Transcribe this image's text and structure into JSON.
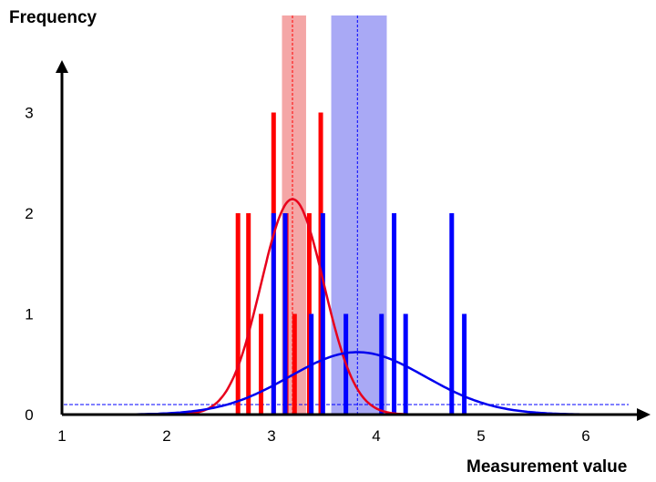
{
  "chart_data": {
    "type": "bar",
    "title": "",
    "xlabel": "Measurement value",
    "ylabel": "Frequency",
    "xlim": [
      1,
      6.5
    ],
    "ylim": [
      0,
      3.4
    ],
    "x_ticks": [
      "1",
      "2",
      "3",
      "4",
      "5",
      "6"
    ],
    "y_ticks": [
      "0",
      "1",
      "2",
      "3"
    ],
    "grid": false,
    "series": [
      {
        "color": "#ff0000",
        "bars": [
          {
            "x": 2.68,
            "y": 2
          },
          {
            "x": 2.78,
            "y": 2
          },
          {
            "x": 2.9,
            "y": 1
          },
          {
            "x": 3.02,
            "y": 3
          },
          {
            "x": 3.14,
            "y": 2
          },
          {
            "x": 3.22,
            "y": 1
          },
          {
            "x": 3.36,
            "y": 2
          },
          {
            "x": 3.47,
            "y": 3
          }
        ],
        "mean": 3.2,
        "interval": [
          3.1,
          3.33
        ],
        "curve": {
          "mean": 3.2,
          "sd": 0.3,
          "peak": 2.14
        },
        "band_color": "#f4a6a6"
      },
      {
        "color": "#0000ff",
        "bars": [
          {
            "x": 3.02,
            "y": 2
          },
          {
            "x": 3.13,
            "y": 2
          },
          {
            "x": 3.38,
            "y": 1
          },
          {
            "x": 3.49,
            "y": 2
          },
          {
            "x": 3.71,
            "y": 1
          },
          {
            "x": 4.05,
            "y": 1
          },
          {
            "x": 4.17,
            "y": 2
          },
          {
            "x": 4.28,
            "y": 1
          },
          {
            "x": 4.72,
            "y": 2
          },
          {
            "x": 4.84,
            "y": 1
          }
        ],
        "mean": 3.82,
        "interval": [
          3.57,
          4.1
        ],
        "curve": {
          "mean": 3.82,
          "sd": 0.65,
          "peak": 0.62
        },
        "band_color": "#a9a9f5",
        "baseline": 0.1
      }
    ]
  }
}
